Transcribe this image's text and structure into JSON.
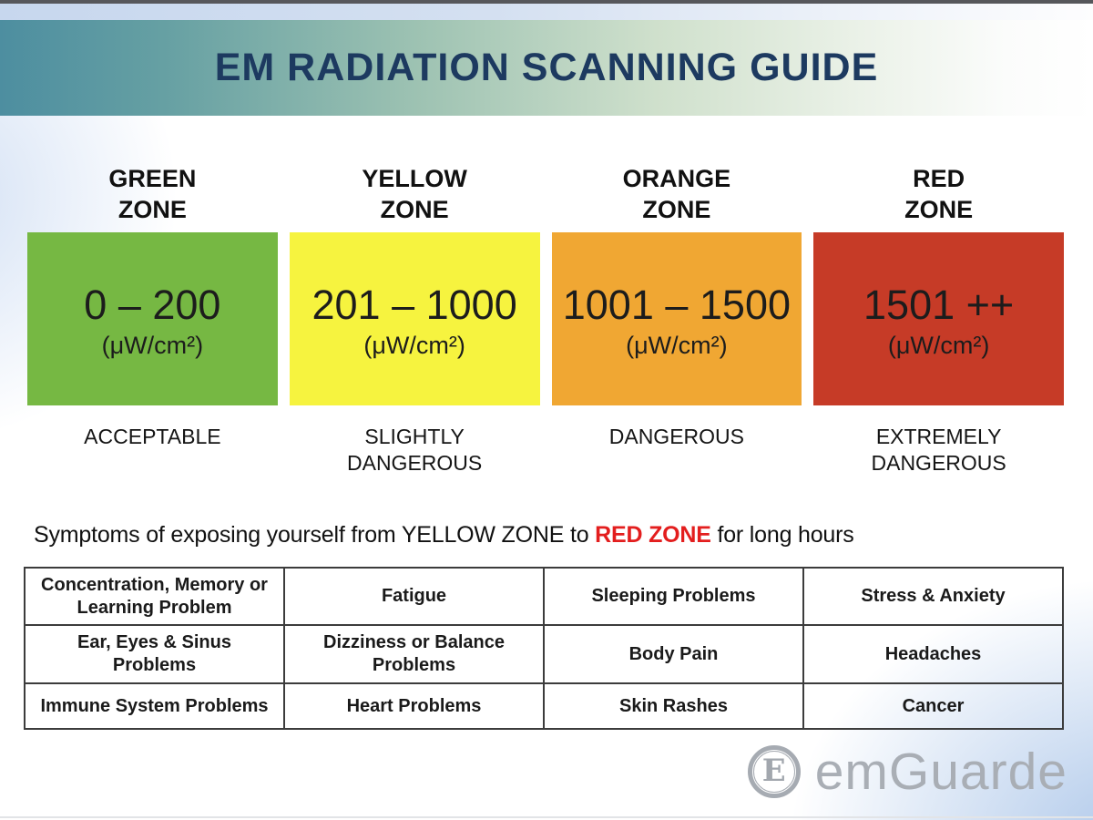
{
  "theme": {
    "title_color": "#1d3a60",
    "table_border_color": "#3c3c3c",
    "brand_gray": "#a9aeb5"
  },
  "header": {
    "title": "EM RADIATION SCANNING GUIDE"
  },
  "zones": [
    {
      "name_line1": "GREEN",
      "name_line2": "ZONE",
      "range": "0 – 200",
      "unit": "(μW/cm²)",
      "severity_line1": "ACCEPTABLE",
      "severity_line2": "",
      "color": "#76b843"
    },
    {
      "name_line1": "YELLOW",
      "name_line2": "ZONE",
      "range": "201 – 1000",
      "unit": "(μW/cm²)",
      "severity_line1": "SLIGHTLY",
      "severity_line2": "DANGEROUS",
      "color": "#f6f33f"
    },
    {
      "name_line1": "ORANGE",
      "name_line2": "ZONE",
      "range": "1001 – 1500",
      "unit": "(μW/cm²)",
      "severity_line1": "DANGEROUS",
      "severity_line2": "",
      "color": "#f0a733"
    },
    {
      "name_line1": "RED",
      "name_line2": "ZONE",
      "range": "1501 ++",
      "unit": "(μW/cm²)",
      "severity_line1": "EXTREMELY",
      "severity_line2": "DANGEROUS",
      "color": "#c63b27"
    }
  ],
  "symptoms": {
    "heading_prefix": "Symptoms of exposing yourself from YELLOW ZONE to ",
    "heading_highlight": "RED ZONE",
    "heading_suffix": " for long hours",
    "highlight_color": "#e31e1e",
    "table": [
      [
        "Concentration, Memory or Learning Problem",
        "Fatigue",
        "Sleeping Problems",
        "Stress & Anxiety"
      ],
      [
        "Ear, Eyes & Sinus Problems",
        "Dizziness or Balance Problems",
        "Body Pain",
        "Headaches"
      ],
      [
        "Immune System Problems",
        "Heart Problems",
        "Skin Rashes",
        "Cancer"
      ]
    ]
  },
  "brand": {
    "name": "emGuarde",
    "emblem_letter": "E"
  }
}
